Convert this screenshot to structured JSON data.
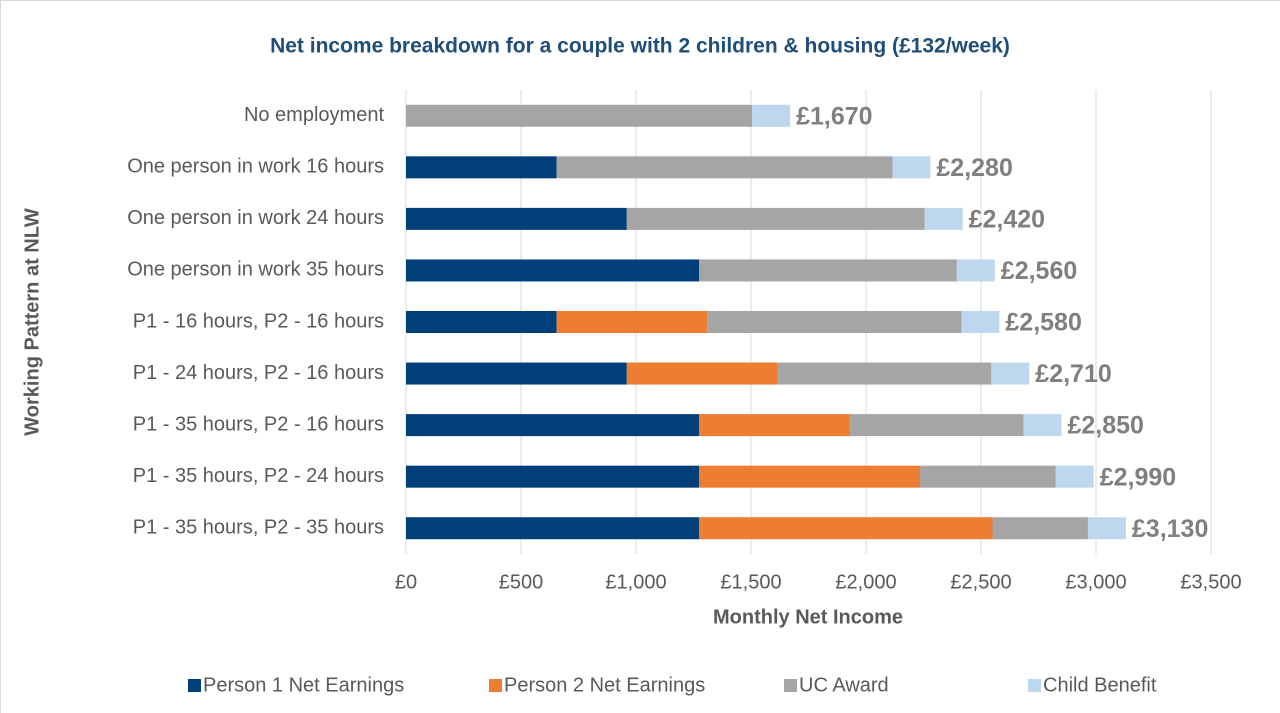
{
  "chart_data": {
    "type": "stacked_barh",
    "title": "Net income breakdown for a couple with 2 children & housing (£132/week)",
    "x_label": "Monthly Net Income",
    "y_label": "Working Pattern at NLW",
    "categories": [
      "No employment",
      "One person in work 16 hours",
      "One person in work 24 hours",
      "One person in work 35 hours",
      "P1 - 16 hours, P2 - 16 hours",
      "P1 - 24 hours, P2 - 16 hours",
      "P1 - 35 hours, P2 - 16 hours",
      "P1 - 35 hours, P2 - 24 hours",
      "P1 - 35 hours, P2 - 35 hours"
    ],
    "series": [
      {
        "name": "Person 1 Net Earnings",
        "color": "#003f7a",
        "values": [
          0,
          655,
          960,
          1275,
          655,
          960,
          1275,
          1275,
          1275
        ]
      },
      {
        "name": "Person 2 Net Earnings",
        "color": "#ed7d31",
        "values": [
          0,
          0,
          0,
          0,
          655,
          655,
          655,
          960,
          1275
        ]
      },
      {
        "name": "UC Award",
        "color": "#a5a5a5",
        "values": [
          1505,
          1460,
          1295,
          1120,
          1105,
          930,
          755,
          590,
          415
        ]
      },
      {
        "name": "Child Benefit",
        "color": "#bdd7ee",
        "values": [
          165,
          165,
          165,
          165,
          165,
          165,
          165,
          165,
          165
        ]
      }
    ],
    "totals": [
      1670,
      2280,
      2420,
      2560,
      2580,
      2710,
      2850,
      2990,
      3130
    ],
    "total_labels": [
      "£1,670",
      "£2,280",
      "£2,420",
      "£2,560",
      "£2,580",
      "£2,710",
      "£2,850",
      "£2,990",
      "£3,130"
    ],
    "xlim": [
      0,
      3500
    ],
    "xticks": [
      {
        "value": 0,
        "label": "£0"
      },
      {
        "value": 500,
        "label": "£500"
      },
      {
        "value": 1000,
        "label": "£1,000"
      },
      {
        "value": 1500,
        "label": "£1,500"
      },
      {
        "value": 2000,
        "label": "£2,000"
      },
      {
        "value": 2500,
        "label": "£2,500"
      },
      {
        "value": 3000,
        "label": "£3,000"
      },
      {
        "value": 3500,
        "label": "£3,500"
      }
    ],
    "grid": true,
    "legend": "bottom"
  }
}
